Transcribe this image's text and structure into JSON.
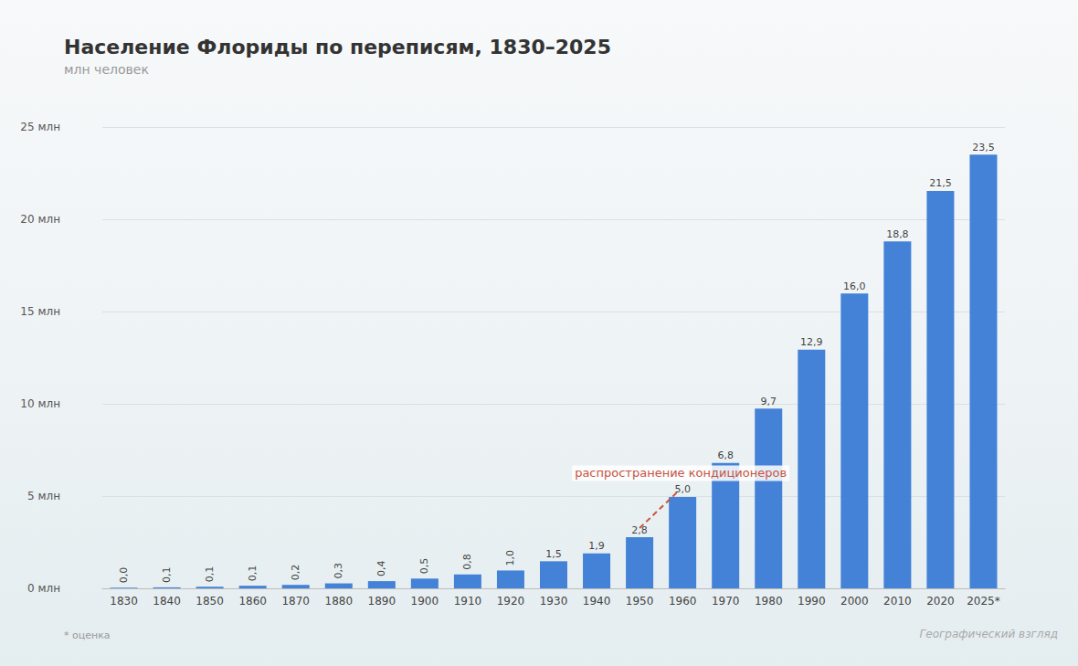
{
  "chart_data": {
    "type": "bar",
    "title": "Население Флориды по переписям, 1830–2025",
    "subtitle": "млн человек",
    "categories": [
      "1830",
      "1840",
      "1850",
      "1860",
      "1870",
      "1880",
      "1890",
      "1900",
      "1910",
      "1920",
      "1930",
      "1940",
      "1950",
      "1960",
      "1970",
      "1980",
      "1990",
      "2000",
      "2010",
      "2020",
      "2025*"
    ],
    "values": [
      0.035,
      0.054,
      0.087,
      0.14,
      0.188,
      0.269,
      0.391,
      0.529,
      0.753,
      0.968,
      1.468,
      1.897,
      2.771,
      4.952,
      6.789,
      9.746,
      12.938,
      15.982,
      18.801,
      21.538,
      23.5
    ],
    "value_labels": [
      "0,0",
      "0,1",
      "0,1",
      "0,1",
      "0,2",
      "0,3",
      "0,4",
      "0,5",
      "0,8",
      "1,0",
      "1,5",
      "1,9",
      "2,8",
      "5,0",
      "6,8",
      "9,7",
      "12,9",
      "16,0",
      "18,8",
      "21,5",
      "23,5"
    ],
    "color": "#3a7bd5",
    "ylim": [
      0,
      25
    ],
    "yticks": [
      {
        "value": 0,
        "label": "0 млн"
      },
      {
        "value": 5,
        "label": "5 млн"
      },
      {
        "value": 10,
        "label": "10 млн"
      },
      {
        "value": 15,
        "label": "15 млн"
      },
      {
        "value": 20,
        "label": "20 млн"
      },
      {
        "value": 25,
        "label": "25 млн"
      }
    ],
    "grid": true,
    "data_labels": true,
    "annotations": [
      {
        "text": "распространение кондиционеров",
        "categories": [
          "1950",
          "1960"
        ]
      }
    ],
    "note": "* оценка",
    "source": "Географический взгляд"
  }
}
